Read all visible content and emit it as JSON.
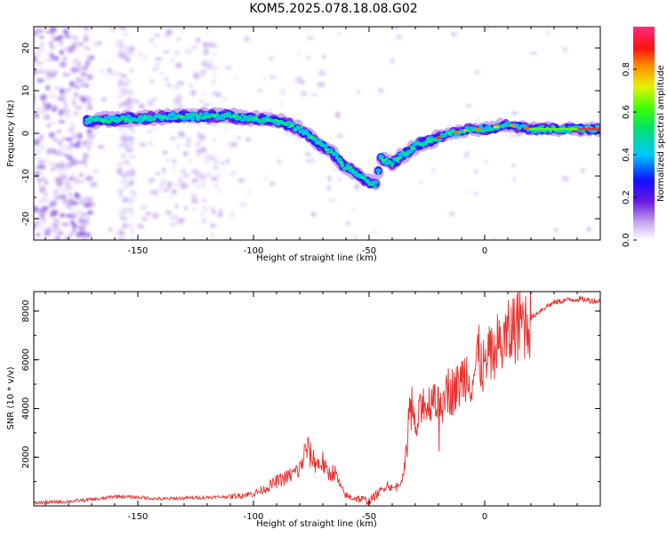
{
  "title": "KOM5.2025.078.18.08.G02",
  "colors": {
    "snr_line": "#e8322f",
    "axis": "#000000",
    "background": "#ffffff"
  },
  "chart_data": [
    {
      "type": "heatmap",
      "xlabel": "Height of straight line (km)",
      "ylabel": "Frequency (Hz)",
      "xlim": [
        -195,
        50
      ],
      "ylim": [
        -25,
        25
      ],
      "xticks": [
        {
          "value": -150,
          "label": "-150"
        },
        {
          "value": -100,
          "label": "-100"
        },
        {
          "value": -50,
          "label": "-50"
        },
        {
          "value": 0,
          "label": "0"
        }
      ],
      "yticks": [
        {
          "value": -20,
          "label": "-20"
        },
        {
          "value": -10,
          "label": "-10"
        },
        {
          "value": 0,
          "label": "0"
        },
        {
          "value": 10,
          "label": "10"
        },
        {
          "value": 20,
          "label": "20"
        }
      ],
      "colorbar": {
        "label": "Normalized spectral amplitude",
        "range": [
          0,
          1
        ],
        "ticks": [
          {
            "value": 0.0,
            "label": "0.0"
          },
          {
            "value": 0.2,
            "label": "0.2"
          },
          {
            "value": 0.4,
            "label": "0.4"
          },
          {
            "value": 0.6,
            "label": "0.6"
          },
          {
            "value": 0.8,
            "label": "0.8"
          }
        ]
      },
      "ridge": {
        "x": [
          -170,
          -150,
          -130,
          -110,
          -100,
          -90,
          -80,
          -75,
          -70,
          -65,
          -60,
          -55,
          -50,
          -47,
          -45,
          -40,
          -35,
          -30,
          -25,
          -20,
          -15,
          -10,
          -5,
          0,
          5,
          10,
          15,
          20,
          30,
          40,
          50
        ],
        "y": [
          3,
          3.5,
          4,
          4,
          3.5,
          3,
          1,
          -1,
          -3,
          -5,
          -8,
          -9.5,
          -11.5,
          -12,
          -6,
          -7,
          -5,
          -3,
          -2,
          -1,
          0,
          0.5,
          1,
          1,
          1.5,
          2,
          1.5,
          1,
          1,
          1,
          1
        ]
      }
    },
    {
      "type": "line",
      "xlabel": "Height of straight line (km)",
      "ylabel": "SNR (10 * v/v)",
      "xlim": [
        -195,
        50
      ],
      "ylim": [
        0,
        8800
      ],
      "xticks": [
        {
          "value": -150,
          "label": "-150"
        },
        {
          "value": -100,
          "label": "-100"
        },
        {
          "value": -50,
          "label": "-50"
        },
        {
          "value": 0,
          "label": "0"
        }
      ],
      "yticks": [
        {
          "value": 2000,
          "label": "2000"
        },
        {
          "value": 4000,
          "label": "4000"
        },
        {
          "value": 6000,
          "label": "6000"
        },
        {
          "value": 8000,
          "label": "8000"
        }
      ],
      "series": [
        {
          "x": [
            -195,
            -180,
            -165,
            -160,
            -150,
            -140,
            -130,
            -120,
            -110,
            -100,
            -95,
            -90,
            -85,
            -80,
            -77,
            -75,
            -72,
            -70,
            -68,
            -65,
            -62,
            -60,
            -55,
            -50,
            -45,
            -42,
            -40,
            -38,
            -35,
            -33,
            -32,
            -31,
            -30,
            -28,
            -26,
            -25,
            -22,
            -20,
            -18,
            -15,
            -12,
            -10,
            -8,
            -5,
            -3,
            0,
            3,
            5,
            8,
            10,
            13,
            15,
            18,
            20,
            25,
            30,
            35,
            40,
            45,
            50
          ],
          "y": [
            120,
            180,
            300,
            400,
            350,
            280,
            320,
            350,
            380,
            500,
            700,
            1000,
            1200,
            1500,
            2400,
            2000,
            1700,
            1800,
            1300,
            1400,
            700,
            400,
            300,
            200,
            600,
            900,
            700,
            800,
            1200,
            3500,
            4500,
            3800,
            3000,
            3800,
            4500,
            3900,
            4800,
            4000,
            5000,
            4700,
            4800,
            5200,
            5500,
            5200,
            6200,
            5600,
            6300,
            6500,
            6700,
            6900,
            7400,
            7500,
            7600,
            7700,
            8100,
            8350,
            8450,
            8500,
            8450,
            8400
          ]
        }
      ]
    }
  ]
}
